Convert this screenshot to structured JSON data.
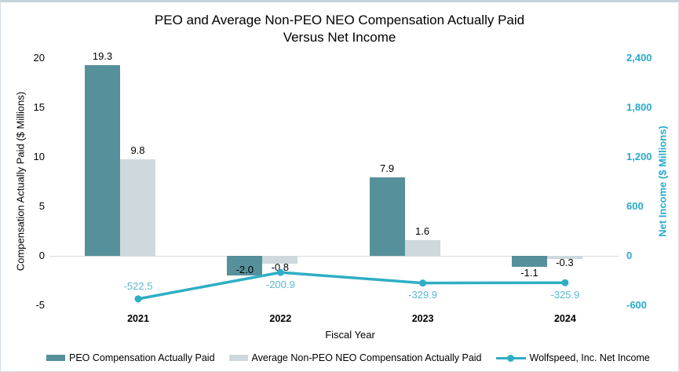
{
  "chart_data": {
    "type": "combo",
    "title_line1": "PEO and Average Non-PEO NEO Compensation Actually Paid",
    "title_line2": "Versus Net Income",
    "xlabel": "Fiscal Year",
    "categories": [
      "2021",
      "2022",
      "2023",
      "2024"
    ],
    "left_axis": {
      "label": "Compensation Actually Paid ($ Millions)",
      "ticks": [
        20,
        15,
        10,
        5,
        0,
        -5
      ],
      "tick_labels": [
        "20",
        "15",
        "10",
        "5",
        "0",
        "-5"
      ],
      "range": [
        -5,
        20
      ]
    },
    "right_axis": {
      "label": "Net Income ($ Millions)",
      "ticks": [
        2400,
        1800,
        1200,
        600,
        0,
        -600
      ],
      "tick_labels": [
        "2,400",
        "1,800",
        "1,200",
        "600",
        "0",
        "-600"
      ],
      "range": [
        -600,
        2400
      ],
      "color": "#29ABCB"
    },
    "series": [
      {
        "name": "PEO Compensation Actually Paid",
        "type": "bar",
        "axis": "left",
        "color": "#56909A",
        "values": [
          19.3,
          -2.0,
          7.9,
          -1.1
        ],
        "labels": [
          "19.3",
          "-2.0",
          "7.9",
          "-1.1"
        ]
      },
      {
        "name": "Average Non-PEO NEO Compensation Actually Paid",
        "type": "bar",
        "axis": "left",
        "color": "#CDD9DC",
        "values": [
          9.8,
          -0.8,
          1.6,
          -0.3
        ],
        "labels": [
          "9.8",
          "-0.8",
          "1.6",
          "-0.3"
        ]
      },
      {
        "name": "Wolfspeed, Inc. Net Income",
        "type": "line",
        "axis": "right",
        "color": "#2FAEC5",
        "label_color": "#58BACF",
        "values": [
          -522.5,
          -200.9,
          -329.9,
          -325.9
        ],
        "labels": [
          "-522.5",
          "-200.9",
          "-329.9",
          "-325.9"
        ],
        "label_position": [
          "above",
          "below",
          "below",
          "below"
        ]
      }
    ],
    "legend_position": "bottom",
    "grid": "zero-line-only"
  },
  "colors": {
    "gridline": "#D9D9D9",
    "frame_border": "#C8D5DC",
    "text": "#000000"
  }
}
